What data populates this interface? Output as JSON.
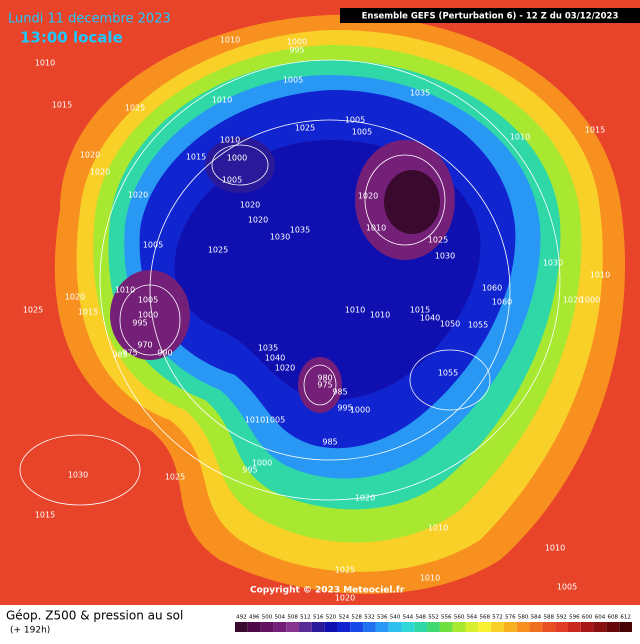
{
  "header": {
    "title": "Lundi 11 decembre 2023",
    "time": "13:00 locale",
    "model": "Ensemble GEFS  (Perturbation 6) - 12 Z du 03/12/2023"
  },
  "footer": {
    "product": "Géop. Z500 & pression au sol",
    "lead": "(+ 192h)",
    "copyright": "Copyright © 2023 Meteociel.fr"
  },
  "isobar_labels": [
    "1010",
    "1015",
    "1025",
    "1020",
    "1020",
    "1020",
    "1010",
    "1000",
    "995",
    "1005",
    "1025",
    "1010",
    "1010",
    "1015",
    "1000",
    "1005",
    "1020",
    "1020",
    "1030",
    "1035",
    "1025",
    "1005",
    "1010",
    "1005",
    "1000",
    "995",
    "985",
    "970",
    "975",
    "990",
    "1020",
    "1015",
    "1025",
    "1035",
    "1040",
    "1020",
    "980",
    "975",
    "985",
    "995",
    "1000",
    "1010",
    "1005",
    "985",
    "1000",
    "995",
    "1030",
    "1025",
    "1015",
    "1020",
    "1010",
    "1005",
    "1005",
    "1035",
    "1020",
    "1010",
    "1025",
    "1030",
    "1010",
    "1010",
    "1015",
    "1040",
    "1050",
    "1055",
    "1060",
    "1060",
    "1030",
    "1010",
    "1020",
    "1000",
    "1015",
    "1010",
    "1055",
    "1010",
    "1005",
    "1010",
    "1025",
    "1020"
  ],
  "legend": [
    {
      "label": 492,
      "color": "#3a0a2e"
    },
    {
      "label": 496,
      "color": "#4e0a46"
    },
    {
      "label": 500,
      "color": "#621260"
    },
    {
      "label": 504,
      "color": "#742078"
    },
    {
      "label": 508,
      "color": "#86358e"
    },
    {
      "label": 512,
      "color": "#5a2a96"
    },
    {
      "label": 516,
      "color": "#2a1a9a"
    },
    {
      "label": 520,
      "color": "#1010b0"
    },
    {
      "label": 524,
      "color": "#1024d0"
    },
    {
      "label": 528,
      "color": "#1848e8"
    },
    {
      "label": 532,
      "color": "#2070f0"
    },
    {
      "label": 536,
      "color": "#2898f4"
    },
    {
      "label": 540,
      "color": "#30c0f0"
    },
    {
      "label": 544,
      "color": "#30d8d8"
    },
    {
      "label": 548,
      "color": "#30d8a8"
    },
    {
      "label": 552,
      "color": "#40d870"
    },
    {
      "label": 556,
      "color": "#70e040"
    },
    {
      "label": 560,
      "color": "#a8e830"
    },
    {
      "label": 564,
      "color": "#d8f030"
    },
    {
      "label": 568,
      "color": "#f8f030"
    },
    {
      "label": 572,
      "color": "#f8d028"
    },
    {
      "label": 576,
      "color": "#f8b020"
    },
    {
      "label": 580,
      "color": "#f89020"
    },
    {
      "label": 584,
      "color": "#f07020"
    },
    {
      "label": 588,
      "color": "#e85024"
    },
    {
      "label": 592,
      "color": "#e03c28"
    },
    {
      "label": 596,
      "color": "#c8281e"
    },
    {
      "label": 600,
      "color": "#a81818"
    },
    {
      "label": 604,
      "color": "#881010"
    },
    {
      "label": 608,
      "color": "#680808"
    },
    {
      "label": 612,
      "color": "#480404"
    }
  ]
}
